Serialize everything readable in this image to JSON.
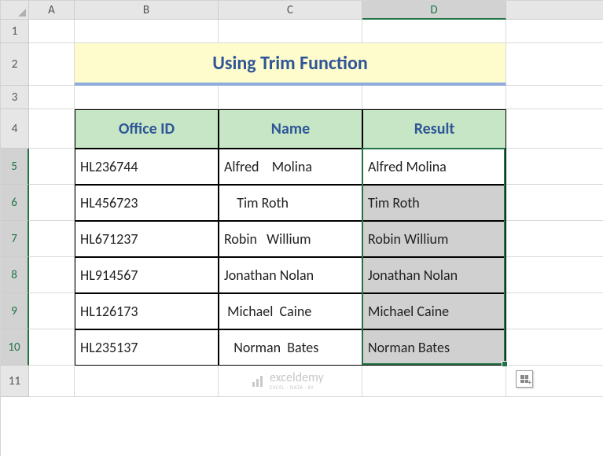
{
  "columns": [
    {
      "label": "A",
      "width": 58,
      "active": false
    },
    {
      "label": "B",
      "width": 183,
      "active": false
    },
    {
      "label": "C",
      "width": 183,
      "active": false
    },
    {
      "label": "D",
      "width": 183,
      "active": true
    },
    {
      "label": "",
      "width": 124,
      "active": false
    }
  ],
  "rows": [
    {
      "label": "1",
      "height": 30,
      "active": false
    },
    {
      "label": "2",
      "height": 54,
      "active": false
    },
    {
      "label": "3",
      "height": 30,
      "active": false
    },
    {
      "label": "4",
      "height": 50,
      "active": false
    },
    {
      "label": "5",
      "height": 46,
      "active": true
    },
    {
      "label": "6",
      "height": 46,
      "active": true
    },
    {
      "label": "7",
      "height": 46,
      "active": true
    },
    {
      "label": "8",
      "height": 46,
      "active": true
    },
    {
      "label": "9",
      "height": 46,
      "active": true
    },
    {
      "label": "10",
      "height": 46,
      "active": true
    },
    {
      "label": "11",
      "height": 40,
      "active": false
    }
  ],
  "title": "Using Trim Function",
  "headers": {
    "b": "Office ID",
    "c": "Name",
    "d": "Result"
  },
  "data": [
    {
      "b": "HL236744",
      "c": "Alfred    Molina",
      "d": "Alfred Molina",
      "shaded": false
    },
    {
      "b": "HL456723",
      "c": "    Tim Roth",
      "d": "Tim Roth",
      "shaded": true
    },
    {
      "b": "HL671237",
      "c": "Robin   Willium",
      "d": "Robin Willium",
      "shaded": true
    },
    {
      "b": "HL914567",
      "c": "Jonathan Nolan",
      "d": "Jonathan Nolan",
      "shaded": true
    },
    {
      "b": "HL126173",
      "c": " Michael  Caine",
      "d": "Michael Caine",
      "shaded": true
    },
    {
      "b": "HL235137",
      "c": "   Norman  Bates",
      "d": "Norman Bates",
      "shaded": true
    }
  ],
  "watermark": {
    "brand": "exceldemy",
    "sub": "EXCEL · DATA · BI"
  },
  "colors": {
    "selection": "#217346",
    "title_bg": "#fefccc",
    "title_fg": "#2f5597",
    "title_underline": "#8faadc",
    "header_row_bg": "#c6e6c6",
    "header_row_fg": "#2f5597",
    "shaded_bg": "#d0d0d0"
  },
  "selection": {
    "col_start": 3,
    "col_end": 3,
    "row_start": 4,
    "row_end": 9
  }
}
